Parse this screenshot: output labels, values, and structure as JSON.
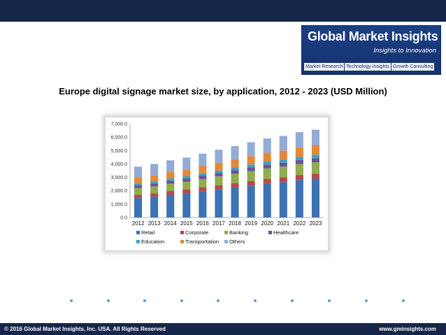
{
  "header": {
    "logo_name": "Global Market Insights",
    "logo_tagline": "Insights to Innovation",
    "logo_links": [
      "Market Research",
      "Technology Insights",
      "Growth Consulting"
    ]
  },
  "footer": {
    "copyright": "© 2016 Global Market Insights, Inc. USA.  All Rights Reserved",
    "website": "www.gminsights.com"
  },
  "chart_data": {
    "type": "bar",
    "stacked": true,
    "title": "Europe digital signage market size, by application, 2012 - 2023 (USD Million)",
    "xlabel": "",
    "ylabel": "",
    "ylim": [
      0,
      7000
    ],
    "yticks": [
      "0.0",
      "1,000.0",
      "2,000.0",
      "3,000.0",
      "4,000.0",
      "5,000.0",
      "6,000.0",
      "7,000.0"
    ],
    "categories": [
      "2012",
      "2013",
      "2014",
      "2015",
      "2016",
      "2017",
      "2018",
      "2019",
      "2020",
      "2021",
      "2022",
      "2023"
    ],
    "series": [
      {
        "name": "Retail",
        "color": "#3d72b5",
        "values": [
          1450,
          1550,
          1700,
          1800,
          1950,
          2100,
          2250,
          2400,
          2550,
          2650,
          2800,
          2900
        ]
      },
      {
        "name": "Corporate",
        "color": "#b54b4b",
        "values": [
          250,
          260,
          280,
          290,
          300,
          310,
          320,
          330,
          340,
          350,
          360,
          370
        ]
      },
      {
        "name": "Banking",
        "color": "#8ead4e",
        "values": [
          500,
          520,
          550,
          580,
          620,
          660,
          700,
          740,
          780,
          800,
          830,
          850
        ]
      },
      {
        "name": "Healthcare",
        "color": "#6b5296",
        "values": [
          200,
          210,
          220,
          230,
          240,
          250,
          260,
          270,
          280,
          290,
          300,
          310
        ]
      },
      {
        "name": "Education",
        "color": "#3ea3bd",
        "values": [
          150,
          160,
          170,
          180,
          190,
          200,
          210,
          220,
          230,
          240,
          250,
          260
        ]
      },
      {
        "name": "Transportation",
        "color": "#e4883a",
        "values": [
          450,
          470,
          490,
          510,
          540,
          570,
          600,
          620,
          650,
          670,
          700,
          720
        ]
      },
      {
        "name": "Others",
        "color": "#93acd6",
        "values": [
          800,
          830,
          860,
          890,
          930,
          970,
          1000,
          1040,
          1080,
          1100,
          1130,
          1150
        ]
      }
    ],
    "legend_position": "bottom",
    "grid": false
  },
  "decor": {
    "dot_color": "#6f9bbf"
  }
}
